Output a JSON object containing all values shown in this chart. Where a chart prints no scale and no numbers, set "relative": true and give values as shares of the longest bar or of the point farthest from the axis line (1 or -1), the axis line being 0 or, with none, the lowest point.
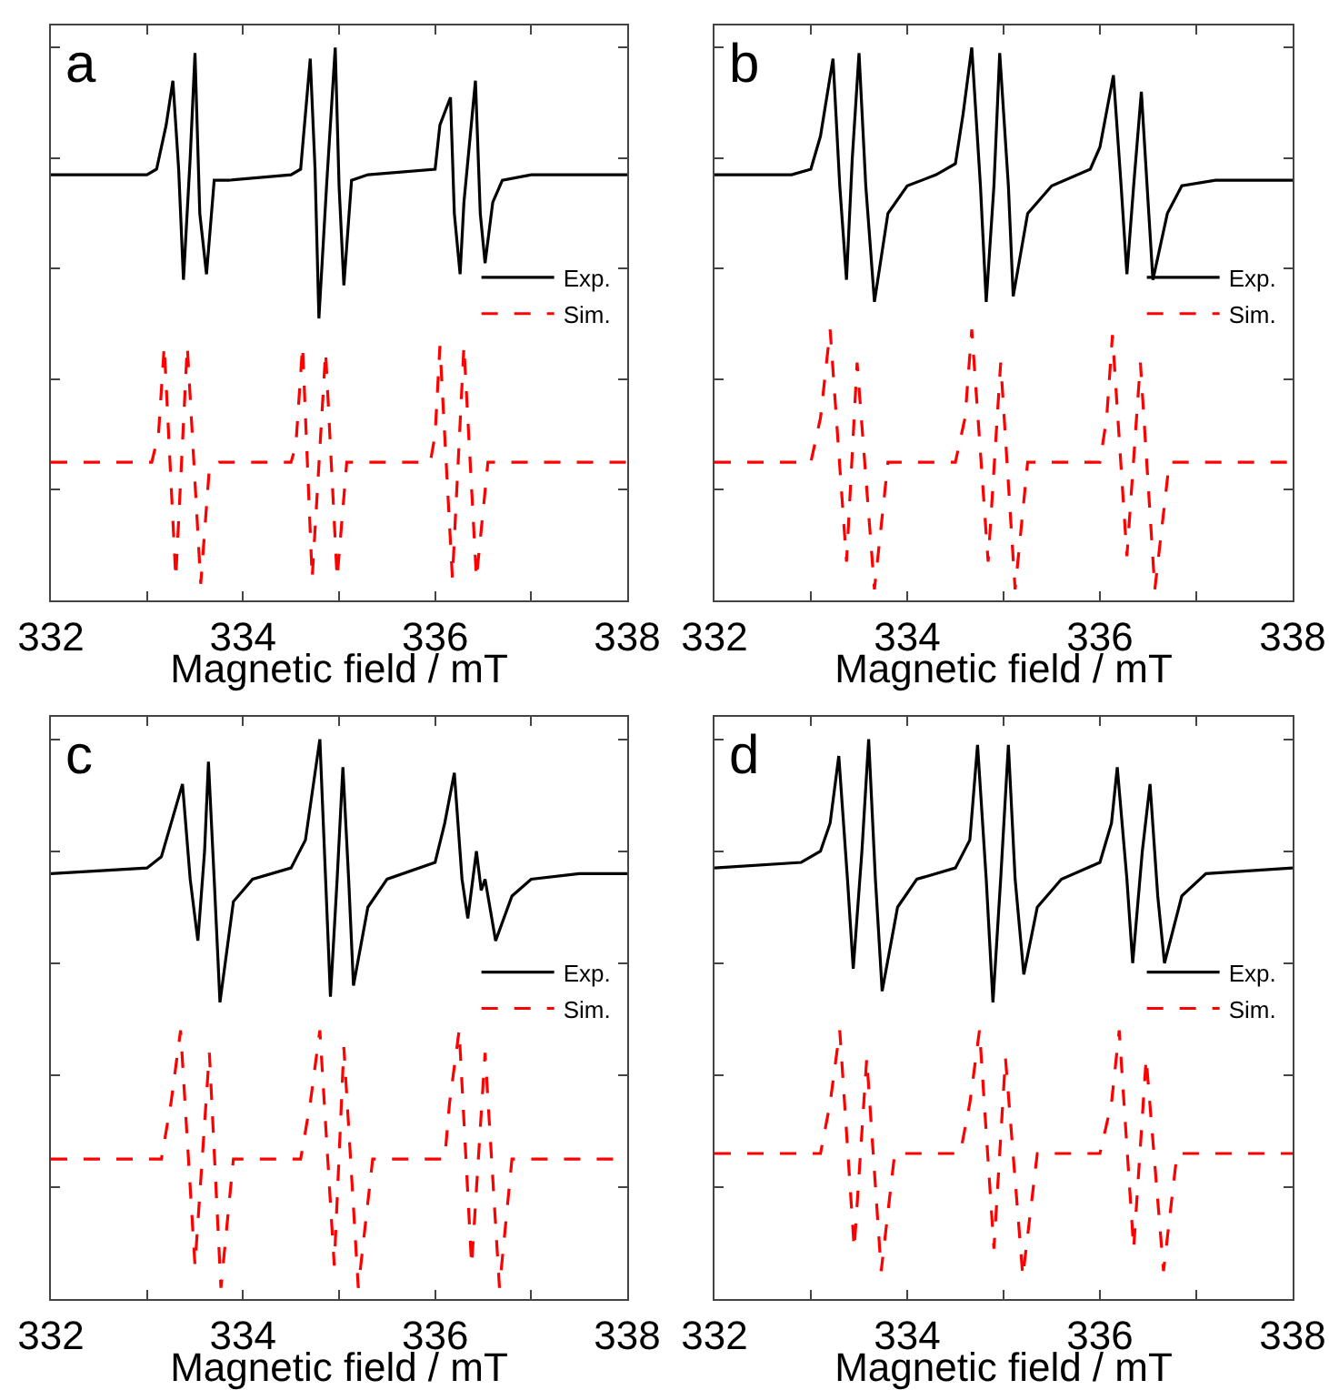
{
  "chart_data": [
    {
      "type": "line",
      "relative": true,
      "annotations": [
        "a"
      ],
      "xlabel": "Magnetic field / mT",
      "xlim": [
        332,
        338
      ],
      "xticks": [
        332,
        {
          "value": 333,
          "label": null
        },
        334,
        {
          "value": 335,
          "label": null
        },
        336,
        {
          "value": 337,
          "label": null
        },
        338
      ],
      "tick_labels": "x",
      "legend": "right",
      "series": [
        {
          "name": "Exp.",
          "color": "#000000",
          "line_style": "solid",
          "x": [
            332,
            333,
            333.1,
            333.2,
            333.27,
            333.33,
            333.38,
            333.45,
            333.5,
            333.55,
            333.62,
            333.7,
            333.85,
            334.5,
            334.6,
            334.7,
            334.75,
            334.79,
            334.87,
            334.96,
            335,
            335.05,
            335.13,
            335.3,
            336,
            336.05,
            336.16,
            336.2,
            336.26,
            336.3,
            336.42,
            336.47,
            336.52,
            336.6,
            336.7,
            337,
            338
          ],
          "values": [
            0.77,
            0.77,
            0.78,
            0.86,
            0.94,
            0.78,
            0.58,
            0.8,
            0.99,
            0.7,
            0.59,
            0.76,
            0.76,
            0.77,
            0.78,
            0.98,
            0.78,
            0.51,
            0.75,
            1,
            0.75,
            0.57,
            0.76,
            0.77,
            0.78,
            0.86,
            0.91,
            0.7,
            0.59,
            0.72,
            0.94,
            0.7,
            0.61,
            0.72,
            0.76,
            0.77,
            0.77
          ]
        },
        {
          "name": "Sim.",
          "color": "#ff0000",
          "line_style": "dashed",
          "x": [
            332,
            333.05,
            333.12,
            333.18,
            333.3,
            333.42,
            333.56,
            333.65,
            333.75,
            334.5,
            334.55,
            334.62,
            334.72,
            334.86,
            334.98,
            335.08,
            335.2,
            335.95,
            336,
            336.05,
            336.18,
            336.3,
            336.43,
            336.55,
            338
          ],
          "values": [
            0.25,
            0.25,
            0.3,
            0.46,
            0.04,
            0.46,
            0.03,
            0.24,
            0.25,
            0.25,
            0.28,
            0.46,
            0.04,
            0.45,
            0.04,
            0.25,
            0.25,
            0.25,
            0.3,
            0.46,
            0.04,
            0.46,
            0.04,
            0.25,
            0.25
          ]
        }
      ]
    },
    {
      "type": "line",
      "relative": true,
      "annotations": [
        "b"
      ],
      "xlabel": "Magnetic field / mT",
      "xlim": [
        332,
        338
      ],
      "xticks": [
        332,
        {
          "value": 333,
          "label": null
        },
        334,
        {
          "value": 335,
          "label": null
        },
        336,
        {
          "value": 337,
          "label": null
        },
        338
      ],
      "tick_labels": "x",
      "legend": "right",
      "series": [
        {
          "name": "Exp.",
          "color": "#000000",
          "line_style": "solid",
          "x": [
            332,
            332.8,
            333,
            333.1,
            333.23,
            333.3,
            333.37,
            333.43,
            333.5,
            333.57,
            333.66,
            333.8,
            334,
            334.3,
            334.5,
            334.58,
            334.67,
            334.76,
            334.82,
            334.9,
            334.96,
            335.05,
            335.1,
            335.25,
            335.5,
            335.9,
            336,
            336.14,
            336.22,
            336.28,
            336.35,
            336.43,
            336.5,
            336.55,
            336.7,
            336.85,
            337.2,
            338
          ],
          "values": [
            0.77,
            0.77,
            0.78,
            0.84,
            0.98,
            0.75,
            0.58,
            0.8,
            0.99,
            0.75,
            0.54,
            0.7,
            0.75,
            0.77,
            0.79,
            0.88,
            1,
            0.75,
            0.54,
            0.75,
            0.99,
            0.75,
            0.55,
            0.7,
            0.75,
            0.78,
            0.82,
            0.95,
            0.75,
            0.59,
            0.75,
            0.92,
            0.72,
            0.58,
            0.7,
            0.75,
            0.76,
            0.76
          ]
        },
        {
          "name": "Sim.",
          "color": "#ff0000",
          "line_style": "dashed",
          "x": [
            332,
            333,
            333.1,
            333.2,
            333.37,
            333.48,
            333.66,
            333.8,
            334.5,
            334.6,
            334.67,
            334.84,
            334.97,
            335.12,
            335.25,
            336,
            336.07,
            336.13,
            336.28,
            336.42,
            336.57,
            336.72,
            338
          ],
          "values": [
            0.25,
            0.25,
            0.33,
            0.49,
            0.07,
            0.43,
            0.02,
            0.25,
            0.25,
            0.33,
            0.49,
            0.07,
            0.43,
            0.02,
            0.25,
            0.25,
            0.33,
            0.48,
            0.08,
            0.43,
            0.02,
            0.25,
            0.25
          ]
        }
      ]
    },
    {
      "type": "line",
      "relative": true,
      "annotations": [
        "c"
      ],
      "xlabel": "Magnetic field / mT",
      "xlim": [
        332,
        338
      ],
      "xticks": [
        332,
        {
          "value": 333,
          "label": null
        },
        334,
        {
          "value": 335,
          "label": null
        },
        336,
        {
          "value": 337,
          "label": null
        },
        338
      ],
      "tick_labels": "x",
      "legend": "right",
      "series": [
        {
          "name": "Exp.",
          "color": "#000000",
          "line_style": "solid",
          "x": [
            332,
            333,
            333.15,
            333.37,
            333.45,
            333.53,
            333.6,
            333.64,
            333.7,
            333.76,
            333.9,
            334.1,
            334.5,
            334.65,
            334.8,
            334.86,
            334.91,
            334.98,
            335.04,
            335.1,
            335.15,
            335.3,
            335.5,
            336,
            336.1,
            336.2,
            336.28,
            336.34,
            336.43,
            336.48,
            336.52,
            336.63,
            336.8,
            337,
            337.5,
            338
          ],
          "values": [
            0.76,
            0.77,
            0.79,
            0.92,
            0.75,
            0.64,
            0.8,
            0.96,
            0.75,
            0.53,
            0.71,
            0.75,
            0.77,
            0.82,
            1,
            0.75,
            0.54,
            0.75,
            0.95,
            0.75,
            0.56,
            0.7,
            0.75,
            0.78,
            0.85,
            0.94,
            0.75,
            0.68,
            0.8,
            0.73,
            0.75,
            0.64,
            0.72,
            0.75,
            0.76,
            0.76
          ]
        },
        {
          "name": "Sim.",
          "color": "#ff0000",
          "line_style": "dashed",
          "x": [
            332,
            333.15,
            333.25,
            333.35,
            333.5,
            333.65,
            333.77,
            333.9,
            334.6,
            334.7,
            334.8,
            334.95,
            335.05,
            335.2,
            335.35,
            336.1,
            336.15,
            336.25,
            336.38,
            336.52,
            336.67,
            336.8,
            338
          ],
          "values": [
            0.25,
            0.25,
            0.35,
            0.48,
            0.06,
            0.44,
            0.02,
            0.25,
            0.25,
            0.35,
            0.48,
            0.06,
            0.45,
            0.02,
            0.25,
            0.25,
            0.35,
            0.48,
            0.06,
            0.44,
            0.02,
            0.25,
            0.25
          ]
        }
      ]
    },
    {
      "type": "line",
      "relative": true,
      "annotations": [
        "d"
      ],
      "xlabel": "Magnetic field / mT",
      "xlim": [
        332,
        338
      ],
      "xticks": [
        332,
        {
          "value": 333,
          "label": null
        },
        334,
        {
          "value": 335,
          "label": null
        },
        336,
        {
          "value": 337,
          "label": null
        },
        338
      ],
      "tick_labels": "x",
      "legend": "right",
      "series": [
        {
          "name": "Exp.",
          "color": "#000000",
          "line_style": "solid",
          "x": [
            332,
            332.9,
            333.1,
            333.2,
            333.29,
            333.38,
            333.44,
            333.53,
            333.6,
            333.67,
            333.74,
            333.9,
            334.1,
            334.5,
            334.65,
            334.73,
            334.82,
            334.89,
            334.97,
            335.05,
            335.12,
            335.21,
            335.35,
            335.6,
            336,
            336.12,
            336.18,
            336.28,
            336.34,
            336.44,
            336.52,
            336.6,
            336.67,
            336.85,
            337.1,
            338
          ],
          "values": [
            0.77,
            0.78,
            0.8,
            0.85,
            0.97,
            0.75,
            0.59,
            0.8,
            1,
            0.75,
            0.55,
            0.7,
            0.75,
            0.77,
            0.82,
            0.99,
            0.75,
            0.53,
            0.75,
            0.99,
            0.75,
            0.58,
            0.7,
            0.75,
            0.78,
            0.85,
            0.95,
            0.75,
            0.6,
            0.8,
            0.92,
            0.72,
            0.6,
            0.72,
            0.76,
            0.77
          ]
        },
        {
          "name": "Sim.",
          "color": "#ff0000",
          "line_style": "dashed",
          "x": [
            332,
            333.1,
            333.2,
            333.3,
            333.45,
            333.58,
            333.73,
            333.87,
            334.55,
            334.65,
            334.75,
            334.9,
            335.02,
            335.2,
            335.35,
            336,
            336.12,
            336.2,
            336.35,
            336.48,
            336.66,
            336.8,
            338
          ],
          "values": [
            0.26,
            0.26,
            0.35,
            0.48,
            0.09,
            0.43,
            0.05,
            0.26,
            0.26,
            0.35,
            0.48,
            0.09,
            0.43,
            0.04,
            0.26,
            0.26,
            0.35,
            0.48,
            0.09,
            0.43,
            0.05,
            0.26,
            0.26
          ]
        }
      ]
    }
  ]
}
